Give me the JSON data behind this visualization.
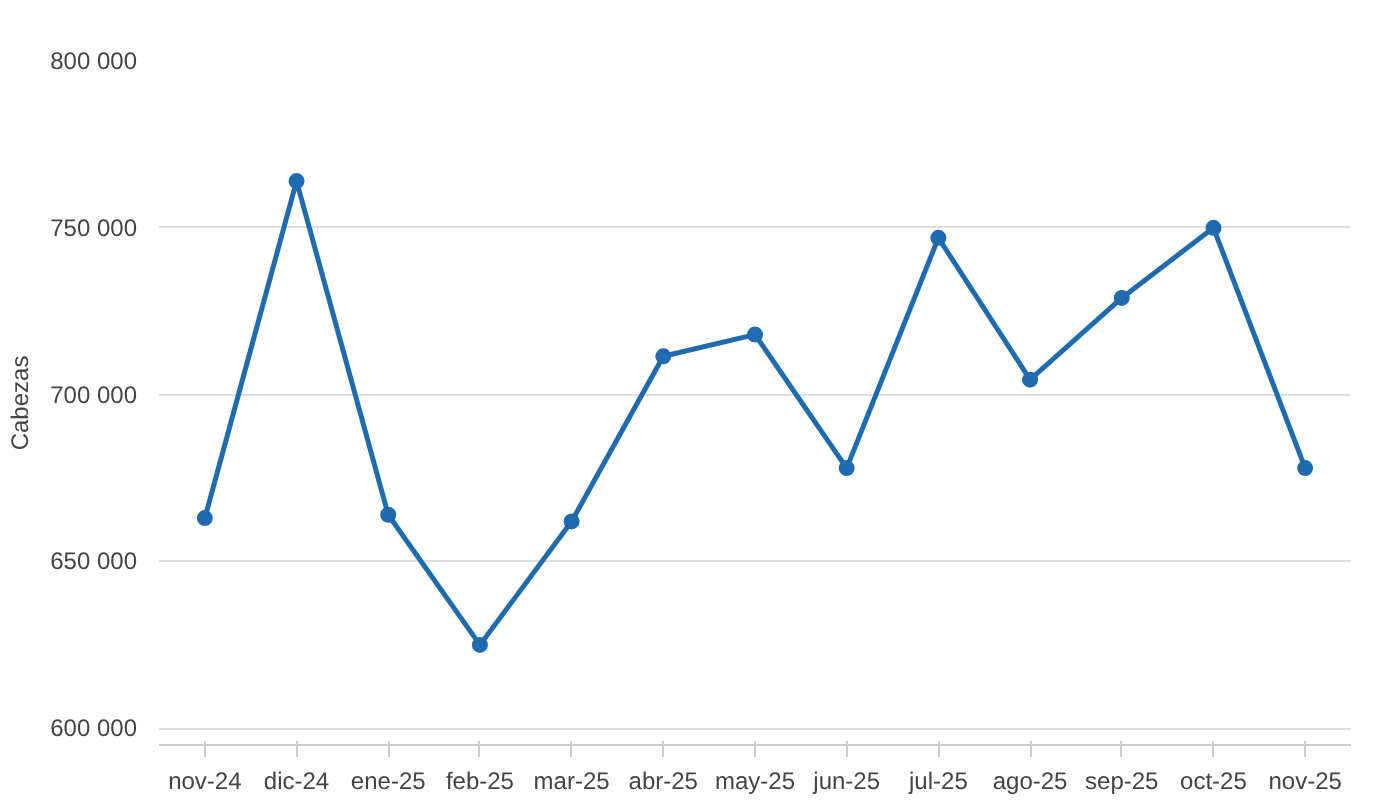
{
  "chart_data": {
    "type": "line",
    "ylabel": "Cabezas",
    "categories": [
      "nov-24",
      "dic-24",
      "ene-25",
      "feb-25",
      "mar-25",
      "abr-25",
      "may-25",
      "jun-25",
      "jul-25",
      "ago-25",
      "sep-25",
      "oct-25",
      "nov-25"
    ],
    "series": [
      {
        "color": "#1f6bb0",
        "values": [
          663000,
          764000,
          664000,
          625000,
          662000,
          711500,
          718000,
          678000,
          747000,
          704500,
          729000,
          750000,
          678000
        ]
      }
    ],
    "ylim": [
      595000,
      800000
    ],
    "yticks": [
      {
        "value": 600000,
        "label": "600 000"
      },
      {
        "value": 650000,
        "label": "650 000"
      },
      {
        "value": 700000,
        "label": "700 000"
      },
      {
        "value": 750000,
        "label": "750 000"
      },
      {
        "value": 800000,
        "label": "800 000"
      }
    ],
    "grid": "y",
    "marker": "circle",
    "line_style": "solid"
  }
}
